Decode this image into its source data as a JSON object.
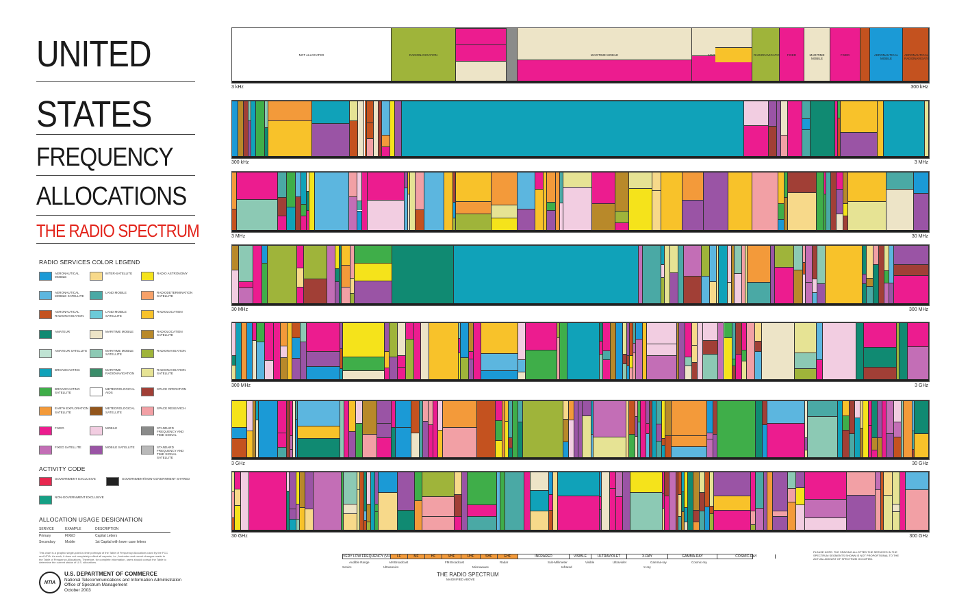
{
  "title": {
    "line1": "UNITED",
    "line2": "STATES",
    "line3": "FREQUENCY",
    "line4": "ALLOCATIONS",
    "subtitle": "THE RADIO SPECTRUM"
  },
  "legend": {
    "heading": "RADIO SERVICES COLOR LEGEND",
    "items": [
      {
        "label": "AERONAUTICAL MOBILE",
        "color": "#1b9ad6"
      },
      {
        "label": "AERONAUTICAL MOBILE SATELLITE",
        "color": "#5cb6df"
      },
      {
        "label": "AERONAUTICAL RADIONAVIGATION",
        "color": "#c4521f"
      },
      {
        "label": "AMATEUR",
        "color": "#108a72"
      },
      {
        "label": "AMATEUR SATELLITE",
        "color": "#bfe3d3"
      },
      {
        "label": "BROADCASTING",
        "color": "#10a2b9"
      },
      {
        "label": "BROADCASTING SATELLITE",
        "color": "#3fae49"
      },
      {
        "label": "EARTH EXPLORATION SATELLITE",
        "color": "#f39a3a"
      },
      {
        "label": "FIXED",
        "color": "#ec1c8f"
      },
      {
        "label": "FIXED SATELLITE",
        "color": "#c36eb6"
      },
      {
        "label": "INTER-SATELLITE",
        "color": "#f7d98a"
      },
      {
        "label": "LAND MOBILE",
        "color": "#4aa9a5"
      },
      {
        "label": "LAND MOBILE SATELLITE",
        "color": "#6ccbd8"
      },
      {
        "label": "MARITIME MOBILE",
        "color": "#ede4c7"
      },
      {
        "label": "MARITIME MOBILE SATELLITE",
        "color": "#8cc9b4"
      },
      {
        "label": "MARITIME RADIONAVIGATION",
        "color": "#3b8d6a"
      },
      {
        "label": "METEOROLOGICAL AIDS",
        "color": "#ffffff"
      },
      {
        "label": "METEOROLOGICAL SATELLITE",
        "color": "#93561c"
      },
      {
        "label": "MOBILE",
        "color": "#f2cde1"
      },
      {
        "label": "MOBILE SATELLITE",
        "color": "#9a54a5"
      },
      {
        "label": "RADIO ASTRONOMY",
        "color": "#f5e31b"
      },
      {
        "label": "RADIODETERMINATION SATELLITE",
        "color": "#f7a169"
      },
      {
        "label": "RADIOLOCATION",
        "color": "#f8c22a"
      },
      {
        "label": "RADIOLOCATION SATELLITE",
        "color": "#b8892a"
      },
      {
        "label": "RADIONAVIGATION",
        "color": "#9fb43a"
      },
      {
        "label": "RADIONAVIGATION SATELLITE",
        "color": "#e6e394"
      },
      {
        "label": "SPACE OPERATION",
        "color": "#a13f36"
      },
      {
        "label": "SPACE RESEARCH",
        "color": "#f2a0a5"
      },
      {
        "label": "STANDARD FREQUENCY AND TIME SIGNAL",
        "color": "#8a8b8a"
      },
      {
        "label": "STANDARD FREQUENCY AND TIME SIGNAL SATELLITE",
        "color": "#b9b9b9"
      }
    ]
  },
  "activity": {
    "heading": "ACTIVITY CODE",
    "items": [
      {
        "label": "GOVERNMENT EXCLUSIVE",
        "color": "#e8274f"
      },
      {
        "label": "GOVERNMENT/NON-GOVERNMENT SHARED",
        "color": "#222222"
      },
      {
        "label": "NON-GOVERNMENT EXCLUSIVE",
        "color": "#16a085"
      }
    ]
  },
  "usage": {
    "heading": "ALLOCATION USAGE DESIGNATION",
    "columns": [
      "SERVICE",
      "EXAMPLE",
      "DESCRIPTION"
    ],
    "rows": [
      [
        "Primary",
        "FIXED",
        "Capital Letters"
      ],
      [
        "Secondary",
        "Mobile",
        "1st Capital with lower case letters"
      ]
    ],
    "note": "This chart is a graphic single-point-in-time portrayal of the Table of Frequency Allocations used by the FCC and NTIA. As such, it does not completely reflect all aspects, i.e., footnotes and recent changes made to the Table of Frequency Allocations. Therefore, for complete information, users should consult the Table to determine the current status of U.S. allocations."
  },
  "agency": {
    "seal": "NTIA",
    "line1": "U.S. DEPARTMENT OF COMMERCE",
    "line2": "National Telecommunications and Information Administration",
    "line3": "Office of Spectrum Management",
    "date": "October 2003"
  },
  "bands": [
    {
      "start": "3 kHz",
      "end": "300 kHz"
    },
    {
      "start": "300 kHz",
      "end": "3 MHz"
    },
    {
      "start": "3 MHz",
      "end": "30 MHz"
    },
    {
      "start": "30 MHz",
      "end": "300 MHz"
    },
    {
      "start": "300 MHz",
      "end": "3 GHz"
    },
    {
      "start": "3 GHz",
      "end": "30 GHz"
    },
    {
      "start": "30 GHz",
      "end": "300 GHz"
    }
  ],
  "band1_labels": {
    "not_allocated": "NOT ALLOCATED",
    "radionav": "RADIONAVIGATION",
    "fixed": "FIXED",
    "maritime_mobile": "MARITIME MOBILE",
    "radiolocation": "Radiolocation",
    "aero_mobile": "Aeronautical Mobile",
    "aero_radionav": "AERONAUTICAL RADIONAVIGATION"
  },
  "spectrum": {
    "title": "THE RADIO SPECTRUM",
    "subtitle": "MAGNIFIED ABOVE",
    "row_labels": [
      "WAVELENGTH",
      "BAND DESIGNATIONS",
      "ACTIVITIES",
      "FREQUENCY"
    ],
    "designations": [
      "VERY LOW FREQUENCY (VLF)",
      "LF",
      "MF",
      "HF",
      "VHF",
      "UHF",
      "SHF",
      "EHF",
      "INFRARED",
      "VISIBLE",
      "ULTRAVIOLET",
      "X-RAY",
      "GAMMA-RAY",
      "COSMIC-RAY"
    ],
    "activities": [
      "Audible Range",
      "AM Broadcast",
      "FM Broadcast",
      "Radar",
      "Sub-Millimeter",
      "Visible",
      "Ultraviolet",
      "Gamma-ray",
      "Cosmic-ray",
      "Sonics",
      "Ultrasonics",
      "Microwaves",
      "Infrared",
      "X-ray"
    ],
    "note": "PLEASE NOTE: THE SPACING ALLOTTED THE SERVICES IN THE SPECTRUM SEGMENTS SHOWN IS NOT PROPORTIONAL TO THE ACTUAL AMOUNT OF SPECTRUM OCCUPIED."
  }
}
